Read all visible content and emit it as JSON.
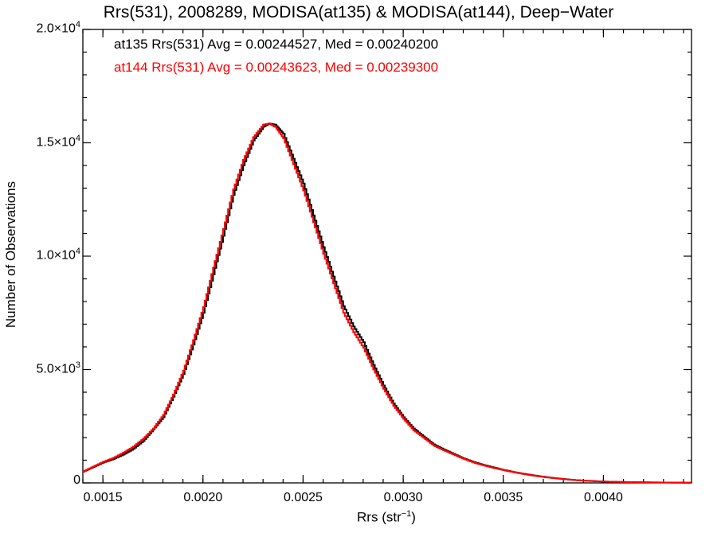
{
  "chart_data": {
    "type": "line",
    "title": "Rrs(531), 2008289, MODISA(at135) & MODISA(at144), Deep−Water",
    "xlabel": "Rrs (str",
    "xlabel_sup": "−1",
    "xlabel_close": ")",
    "ylabel": "Number of Observations",
    "xlim": [
      0.0014,
      0.00444
    ],
    "ylim": [
      0,
      20000
    ],
    "grid": false,
    "step": true,
    "x_ticks": [
      0.0015,
      0.002,
      0.0025,
      0.003,
      0.0035,
      0.004
    ],
    "x_tick_labels": [
      "0.0015",
      "0.0020",
      "0.0025",
      "0.0030",
      "0.0035",
      "0.0040"
    ],
    "y_ticks": [
      0,
      5000,
      10000,
      15000,
      20000
    ],
    "y_tick_labels": [
      {
        "mant": "0",
        "exp": ""
      },
      {
        "mant": "5.0×10",
        "exp": "3"
      },
      {
        "mant": "1.0×10",
        "exp": "4"
      },
      {
        "mant": "1.5×10",
        "exp": "4"
      },
      {
        "mant": "2.0×10",
        "exp": "4"
      }
    ],
    "annotations": [
      "at135 Rrs(531) Avg = 0.00244527, Med = 0.00240200",
      "at144 Rrs(531) Avg = 0.00243623, Med = 0.00239300"
    ],
    "series": [
      {
        "color": "#000000",
        "x": [
          0.0014,
          0.00145,
          0.0015,
          0.00155,
          0.0016,
          0.00165,
          0.0017,
          0.00175,
          0.0018,
          0.00185,
          0.0019,
          0.00195,
          0.002,
          0.00205,
          0.0021,
          0.00215,
          0.0022,
          0.00225,
          0.0023,
          0.00233,
          0.00236,
          0.0024,
          0.00245,
          0.0025,
          0.00255,
          0.0026,
          0.00265,
          0.0027,
          0.00275,
          0.0028,
          0.00285,
          0.0029,
          0.00295,
          0.003,
          0.00305,
          0.0031,
          0.00315,
          0.0032,
          0.00325,
          0.0033,
          0.00335,
          0.0034,
          0.00345,
          0.0035,
          0.00355,
          0.0036,
          0.00365,
          0.0037,
          0.00375,
          0.0038,
          0.00385,
          0.0039,
          0.00395,
          0.004,
          0.00405,
          0.0041,
          0.00415,
          0.0042,
          0.00425,
          0.0043,
          0.00435,
          0.0044,
          0.00444
        ],
        "values": [
          500,
          700,
          900,
          1050,
          1250,
          1500,
          1850,
          2350,
          2900,
          3800,
          4800,
          6100,
          7500,
          9200,
          10900,
          12700,
          14000,
          15100,
          15700,
          15850,
          15800,
          15400,
          14300,
          13200,
          11800,
          10400,
          9100,
          7800,
          6900,
          6200,
          5200,
          4300,
          3500,
          2900,
          2400,
          2050,
          1700,
          1480,
          1280,
          1080,
          920,
          790,
          680,
          570,
          480,
          400,
          330,
          270,
          215,
          170,
          130,
          100,
          80,
          60,
          48,
          40,
          33,
          27,
          22,
          18,
          14,
          11,
          10
        ]
      },
      {
        "color": "#ff0000",
        "x": [
          0.0014,
          0.00145,
          0.0015,
          0.00155,
          0.0016,
          0.00165,
          0.0017,
          0.00175,
          0.0018,
          0.00185,
          0.0019,
          0.00195,
          0.002,
          0.00205,
          0.0021,
          0.00215,
          0.0022,
          0.00225,
          0.0023,
          0.00233,
          0.00236,
          0.0024,
          0.00245,
          0.0025,
          0.00255,
          0.0026,
          0.00265,
          0.0027,
          0.00275,
          0.0028,
          0.00285,
          0.0029,
          0.00295,
          0.003,
          0.00305,
          0.0031,
          0.00315,
          0.0032,
          0.00325,
          0.0033,
          0.00335,
          0.0034,
          0.00345,
          0.0035,
          0.00355,
          0.0036,
          0.00365,
          0.0037,
          0.00375,
          0.0038,
          0.00385,
          0.0039,
          0.00395,
          0.004,
          0.00405,
          0.0041,
          0.00415,
          0.0042,
          0.00425,
          0.0043,
          0.00435,
          0.0044,
          0.00444
        ],
        "values": [
          500,
          720,
          930,
          1100,
          1330,
          1600,
          1950,
          2400,
          3000,
          3900,
          4950,
          6300,
          7750,
          9500,
          11200,
          12950,
          14250,
          15250,
          15800,
          15850,
          15700,
          15200,
          14050,
          12900,
          11500,
          10100,
          8800,
          7500,
          6650,
          5950,
          5000,
          4150,
          3400,
          2820,
          2320,
          1990,
          1650,
          1440,
          1250,
          1060,
          900,
          770,
          660,
          560,
          470,
          390,
          320,
          260,
          210,
          165,
          128,
          98,
          78,
          58,
          46,
          38,
          31,
          26,
          21,
          17,
          13,
          10,
          9
        ]
      }
    ]
  }
}
